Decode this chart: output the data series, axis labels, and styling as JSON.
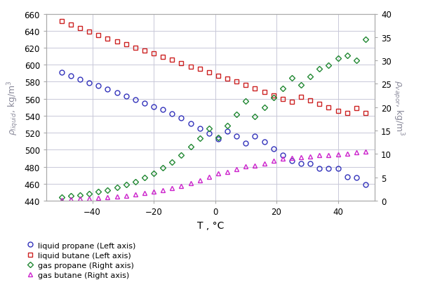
{
  "xlabel": "T , °C",
  "xlim": [
    -55,
    52
  ],
  "ylim_left": [
    440,
    660
  ],
  "ylim_right": [
    0,
    40
  ],
  "xticks": [
    -40,
    -20,
    0,
    20,
    40
  ],
  "yticks_left": [
    440,
    460,
    480,
    500,
    520,
    540,
    560,
    580,
    600,
    620,
    640,
    660
  ],
  "yticks_right": [
    0,
    5,
    10,
    15,
    20,
    25,
    30,
    35,
    40
  ],
  "liquid_propane_T": [
    -50,
    -47,
    -44,
    -41,
    -38,
    -35,
    -32,
    -29,
    -26,
    -23,
    -20,
    -17,
    -14,
    -11,
    -8,
    -5,
    -2,
    1,
    4,
    7,
    10,
    13,
    16,
    19,
    22,
    25,
    28,
    31,
    34,
    37,
    40,
    43,
    46,
    49
  ],
  "liquid_propane_rho": [
    591,
    587,
    583,
    579,
    575,
    571,
    567,
    563,
    559,
    555,
    551,
    547,
    542,
    537,
    531,
    525,
    519,
    513,
    522,
    516,
    508,
    516,
    509,
    501,
    494,
    487,
    484,
    484,
    478,
    478,
    478,
    468,
    467,
    459
  ],
  "liquid_butane_T": [
    -50,
    -47,
    -44,
    -41,
    -38,
    -35,
    -32,
    -29,
    -26,
    -23,
    -20,
    -17,
    -14,
    -11,
    -8,
    -5,
    -2,
    1,
    4,
    7,
    10,
    13,
    16,
    19,
    22,
    25,
    28,
    31,
    34,
    37,
    40,
    43,
    46,
    49
  ],
  "liquid_butane_rho": [
    651,
    647,
    643,
    639,
    635,
    631,
    627,
    624,
    620,
    617,
    613,
    609,
    606,
    602,
    598,
    595,
    591,
    587,
    584,
    580,
    576,
    572,
    568,
    564,
    560,
    556,
    562,
    558,
    554,
    550,
    546,
    543,
    549,
    543
  ],
  "gas_propane_T": [
    -50,
    -47,
    -44,
    -41,
    -38,
    -35,
    -32,
    -29,
    -26,
    -23,
    -20,
    -17,
    -14,
    -11,
    -8,
    -5,
    -2,
    1,
    4,
    7,
    10,
    13,
    16,
    19,
    22,
    25,
    28,
    31,
    34,
    37,
    40,
    43,
    46,
    49
  ],
  "gas_propane_rho": [
    0.8,
    1.0,
    1.2,
    1.5,
    1.9,
    2.3,
    2.8,
    3.4,
    4.1,
    4.9,
    5.9,
    7.0,
    8.3,
    9.8,
    11.5,
    13.4,
    15.5,
    13.5,
    16.0,
    18.5,
    21.3,
    18.0,
    20.0,
    22.0,
    24.0,
    26.2,
    24.8,
    26.5,
    28.2,
    29.0,
    30.5,
    31.0,
    30.0,
    34.5
  ],
  "gas_butane_T": [
    -50,
    -47,
    -44,
    -41,
    -38,
    -35,
    -32,
    -29,
    -26,
    -23,
    -20,
    -17,
    -14,
    -11,
    -8,
    -5,
    -2,
    1,
    4,
    7,
    10,
    13,
    16,
    19,
    22,
    25,
    28,
    31,
    34,
    37,
    40,
    43,
    46,
    49
  ],
  "gas_butane_rho": [
    0.2,
    0.3,
    0.4,
    0.5,
    0.6,
    0.7,
    0.9,
    1.1,
    1.3,
    1.6,
    1.9,
    2.3,
    2.7,
    3.2,
    3.8,
    4.4,
    5.1,
    5.9,
    6.2,
    6.8,
    7.3,
    7.5,
    8.0,
    8.5,
    9.0,
    9.2,
    9.3,
    9.5,
    9.7,
    9.8,
    9.9,
    10.0,
    10.3,
    10.5
  ],
  "color_liquid_propane": "#3333bb",
  "color_liquid_butane": "#cc2222",
  "color_gas_propane": "#228833",
  "color_gas_butane": "#cc22cc",
  "legend_labels": [
    "liquid propane (Left axis)",
    "liquid butane (Left axis)",
    "gas propane (Right axis)",
    "gas butane (Right axis)"
  ],
  "grid_color": "#c8c8d8",
  "bg_color": "#ffffff"
}
